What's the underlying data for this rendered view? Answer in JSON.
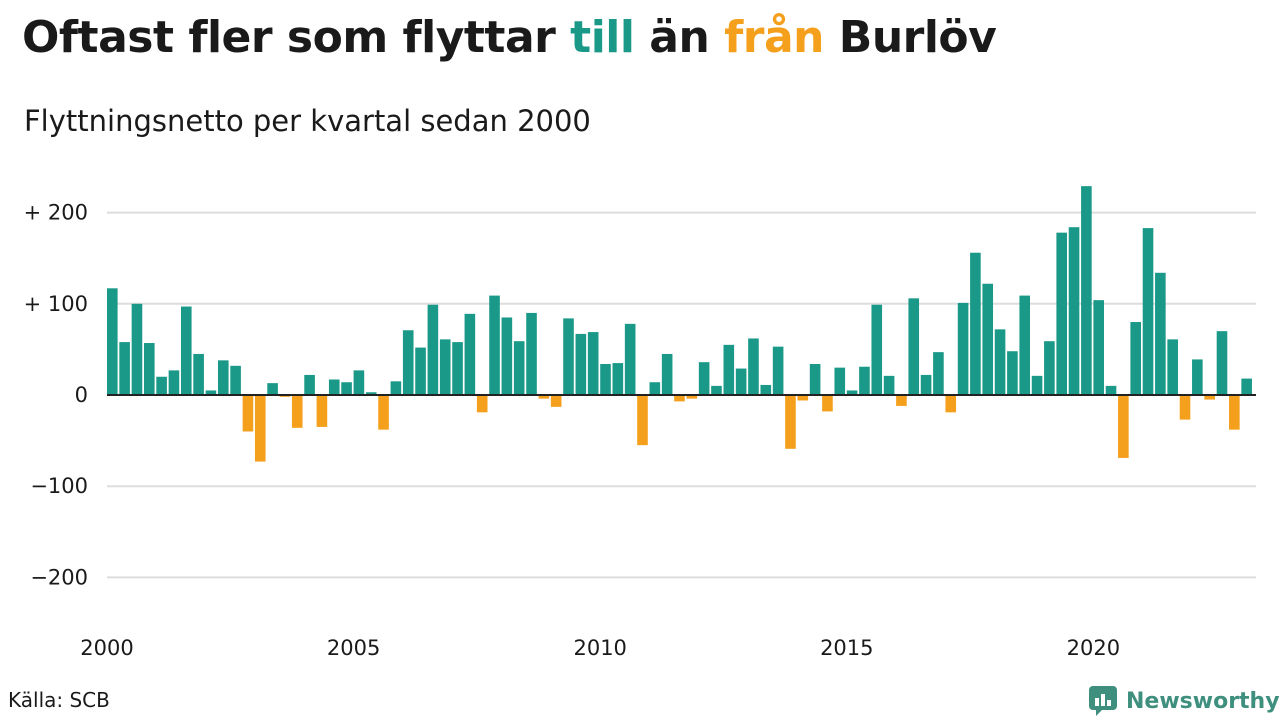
{
  "title": {
    "part1": "Oftast fler som flyttar ",
    "to_word": "till",
    "part2": " än ",
    "from_word": "från",
    "part3": " Burlöv"
  },
  "subtitle": "Flyttningsnetto per kvartal sedan 2000",
  "source": "Källa: SCB",
  "logo_text": "Newsworthy",
  "colors": {
    "positive": "#1a9988",
    "negative": "#f5a01c",
    "grid": "#dddddd",
    "baseline": "#222222"
  },
  "chart_data": {
    "type": "bar",
    "start_year": 2000,
    "ylim": [
      -250,
      240
    ],
    "yticks": [
      {
        "value": 200,
        "label": "+ 200"
      },
      {
        "value": 100,
        "label": "+ 100"
      },
      {
        "value": 0,
        "label": "0"
      },
      {
        "value": -100,
        "label": "−100"
      },
      {
        "value": -200,
        "label": "−200"
      }
    ],
    "xticks": [
      "2000",
      "2005",
      "2010",
      "2015",
      "2020"
    ],
    "values": [
      117,
      58,
      100,
      57,
      20,
      27,
      97,
      45,
      5,
      38,
      32,
      -40,
      -73,
      13,
      -2,
      -36,
      22,
      -35,
      17,
      14,
      27,
      3,
      -38,
      15,
      71,
      52,
      99,
      61,
      58,
      89,
      -19,
      109,
      85,
      59,
      90,
      -4,
      -13,
      84,
      67,
      69,
      34,
      35,
      78,
      -55,
      14,
      45,
      -7,
      -4,
      36,
      10,
      55,
      29,
      62,
      11,
      53,
      -59,
      -6,
      34,
      -18,
      30,
      5,
      31,
      99,
      21,
      -12,
      106,
      22,
      47,
      -19,
      101,
      156,
      122,
      72,
      48,
      109,
      21,
      59,
      178,
      184,
      229,
      104,
      10,
      -69,
      80,
      183,
      134,
      61,
      -27,
      39,
      -5,
      70,
      -38,
      18
    ]
  }
}
